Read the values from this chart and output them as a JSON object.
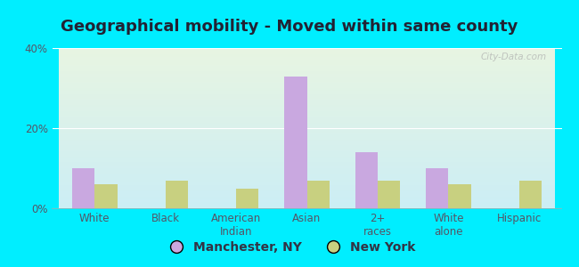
{
  "title": "Geographical mobility - Moved within same county",
  "categories": [
    "White",
    "Black",
    "American\nIndian",
    "Asian",
    "2+\nraces",
    "White\nalone",
    "Hispanic"
  ],
  "manchester_values": [
    10,
    0,
    0,
    33,
    14,
    10,
    0
  ],
  "newyork_values": [
    6,
    7,
    5,
    7,
    7,
    6,
    7
  ],
  "manchester_color": "#c9a8e0",
  "newyork_color": "#c8d080",
  "background_color": "#00eeff",
  "plot_bg_top": "#e8f5e2",
  "plot_bg_bottom": "#cceef5",
  "ylim": [
    0,
    40
  ],
  "yticks": [
    0,
    20,
    40
  ],
  "ytick_labels": [
    "0%",
    "20%",
    "40%"
  ],
  "bar_width": 0.32,
  "legend_labels": [
    "Manchester, NY",
    "New York"
  ],
  "title_fontsize": 13,
  "tick_fontsize": 8.5,
  "legend_fontsize": 10,
  "title_color": "#222233",
  "tick_color": "#555566"
}
